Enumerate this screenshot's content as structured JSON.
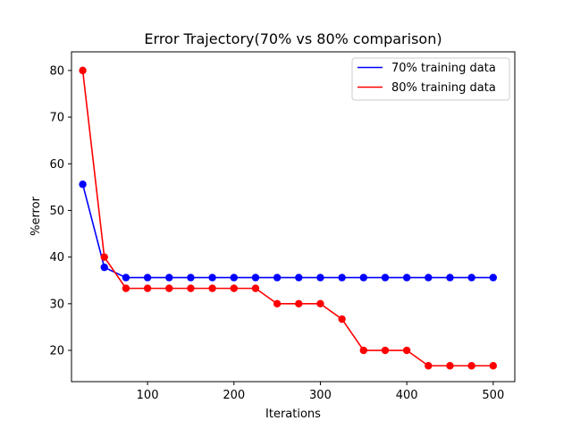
{
  "chart_data": {
    "type": "line",
    "title": "Error Trajectory(70% vs 80% comparison)",
    "xlabel": "Iterations",
    "ylabel": "%error",
    "xlim": [
      12,
      525
    ],
    "ylim": [
      13.3,
      84
    ],
    "xticks": [
      100,
      200,
      300,
      400,
      500
    ],
    "yticks": [
      20,
      30,
      40,
      50,
      60,
      70,
      80
    ],
    "grid": false,
    "legend_position": "top-right",
    "x": [
      25,
      50,
      75,
      100,
      125,
      150,
      175,
      200,
      225,
      250,
      275,
      300,
      325,
      350,
      375,
      400,
      425,
      450,
      475,
      500
    ],
    "series": [
      {
        "name": "70% training data",
        "color": "#0000ff",
        "values": [
          55.6,
          37.8,
          35.6,
          35.6,
          35.6,
          35.6,
          35.6,
          35.6,
          35.6,
          35.6,
          35.6,
          35.6,
          35.6,
          35.6,
          35.6,
          35.6,
          35.6,
          35.6,
          35.6,
          35.6
        ]
      },
      {
        "name": "80% training data",
        "color": "#ff0000",
        "values": [
          80.0,
          40.0,
          33.3,
          33.3,
          33.3,
          33.3,
          33.3,
          33.3,
          33.3,
          30.0,
          30.0,
          30.0,
          26.7,
          20.0,
          20.0,
          20.0,
          16.7,
          16.7,
          16.7,
          16.7
        ]
      }
    ]
  }
}
